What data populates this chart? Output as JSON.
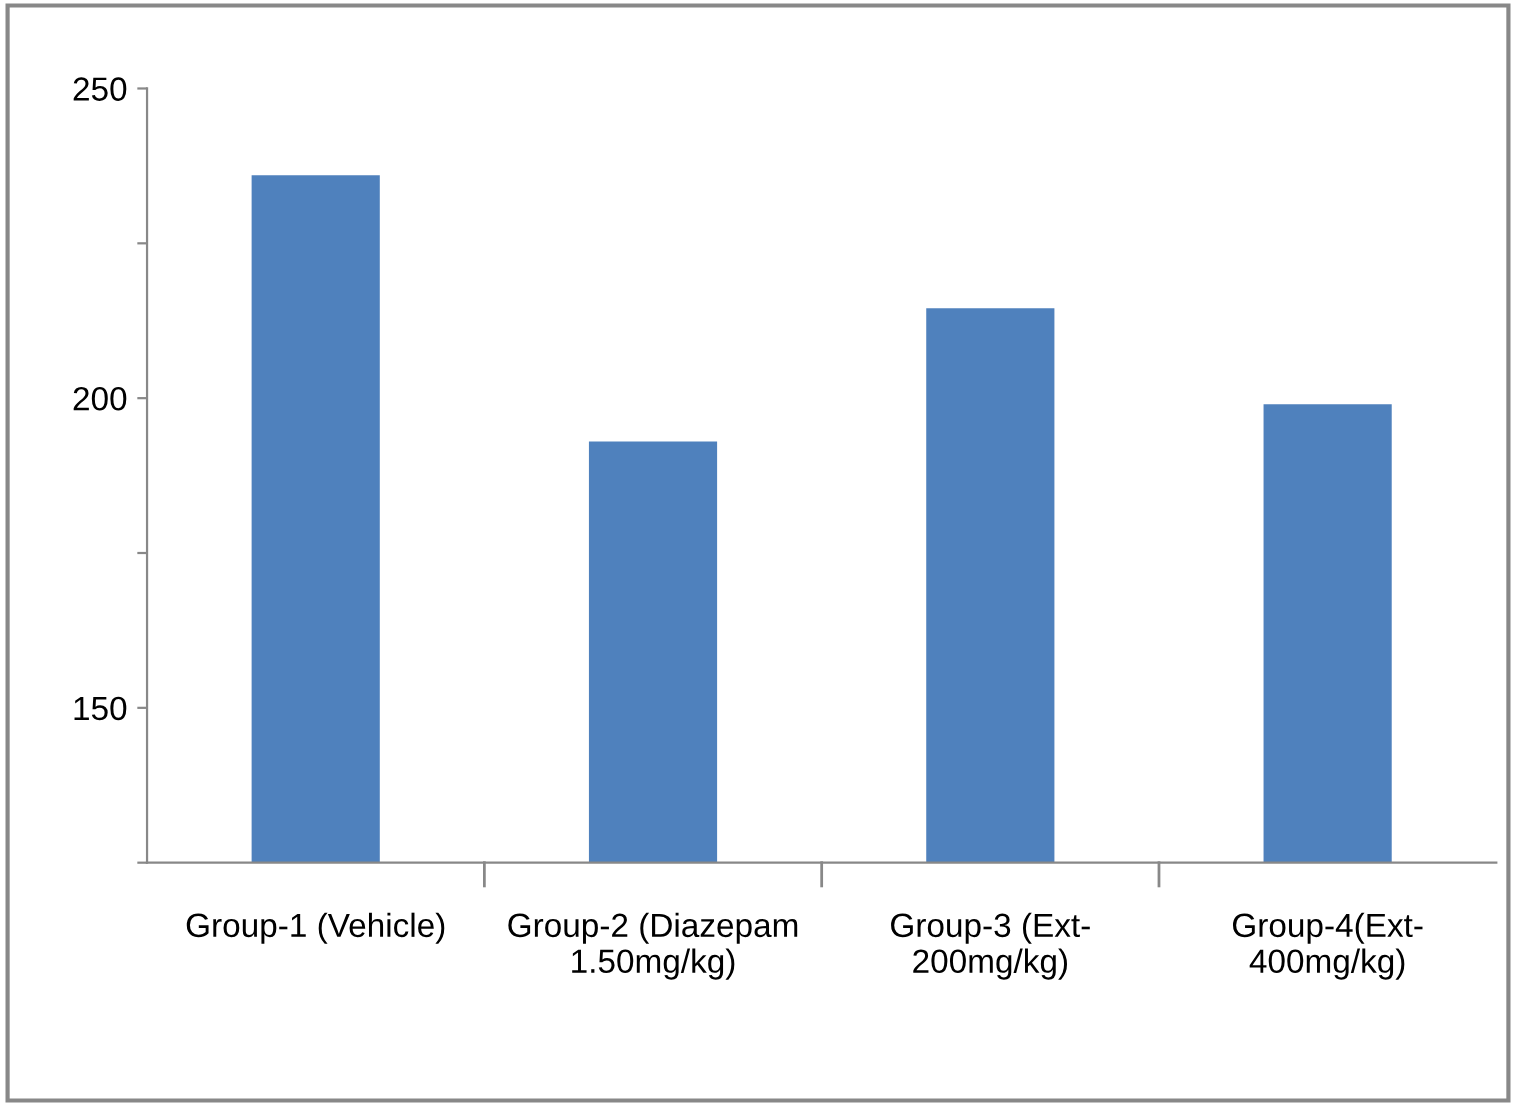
{
  "chart_data": {
    "type": "bar",
    "categories": [
      "Group-1 (Vehicle)",
      "Group-2 (Diazepam\n1.50mg/kg)",
      "Group-3 (Ext-\n200mg/kg)",
      "Group-4(Ext-\n400mg/kg)"
    ],
    "values": [
      236,
      193,
      214.5,
      199
    ],
    "color": "#4f81bd",
    "ylim": [
      125,
      250
    ],
    "yticks": [
      {
        "value": 125,
        "label": null
      },
      150,
      {
        "value": 175,
        "label": null
      },
      200,
      {
        "value": 225,
        "label": null
      },
      250
    ],
    "grid": false,
    "legend": false
  }
}
